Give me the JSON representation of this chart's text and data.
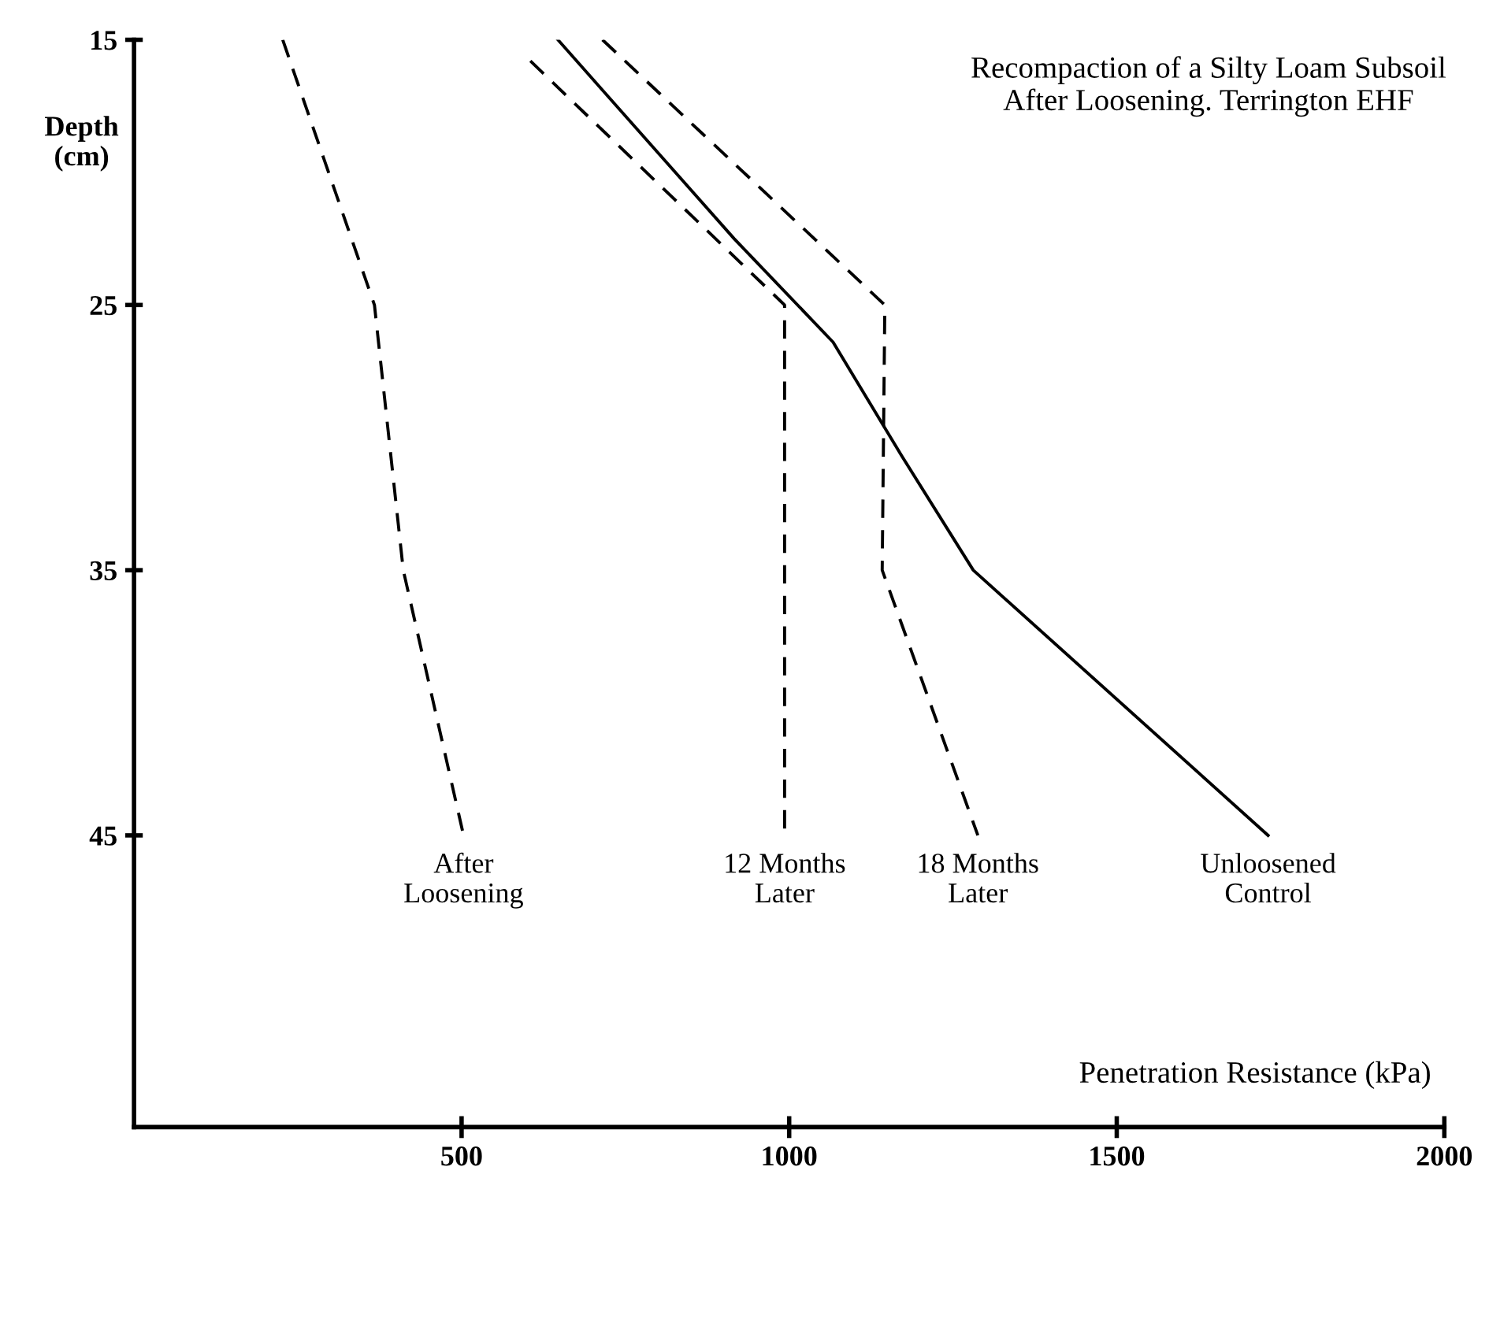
{
  "chart_data": {
    "type": "line",
    "title": "Recompaction of a Silty Loam Subsoil\nAfter Loosening. Terrington EHF",
    "xlabel": "Penetration Resistance (kPa)",
    "ylabel": "Depth\n(cm)",
    "xlim": [
      0,
      2000
    ],
    "xticks": [
      500,
      1000,
      1500,
      2000
    ],
    "ylim": [
      56,
      15
    ],
    "yticks": [
      15,
      25,
      35,
      45
    ],
    "grid": false,
    "legend": false,
    "marker": "none",
    "series": [
      {
        "name": "After\nLoosening",
        "color": "#000000",
        "line_style": "dashed",
        "x": [
          227,
          367,
          411,
          503
        ],
        "values": [
          15,
          25,
          35,
          45
        ]
      },
      {
        "name": "12 Months\nLater",
        "color": "#000000",
        "line_style": "dashed",
        "x": [
          605,
          993,
          993
        ],
        "values": [
          15.8,
          25,
          45
        ]
      },
      {
        "name": "18 Months\nLater",
        "color": "#000000",
        "line_style": "dashed",
        "x": [
          715,
          1146,
          1142,
          1288
        ],
        "values": [
          15,
          25,
          35,
          45
        ]
      },
      {
        "name": "Unloosened\nControl",
        "color": "#000000",
        "line_style": "solid",
        "x": [
          647,
          916,
          1067,
          1172,
          1281,
          1731
        ],
        "values": [
          15,
          22.5,
          26.4,
          30.7,
          35,
          45
        ]
      }
    ]
  }
}
